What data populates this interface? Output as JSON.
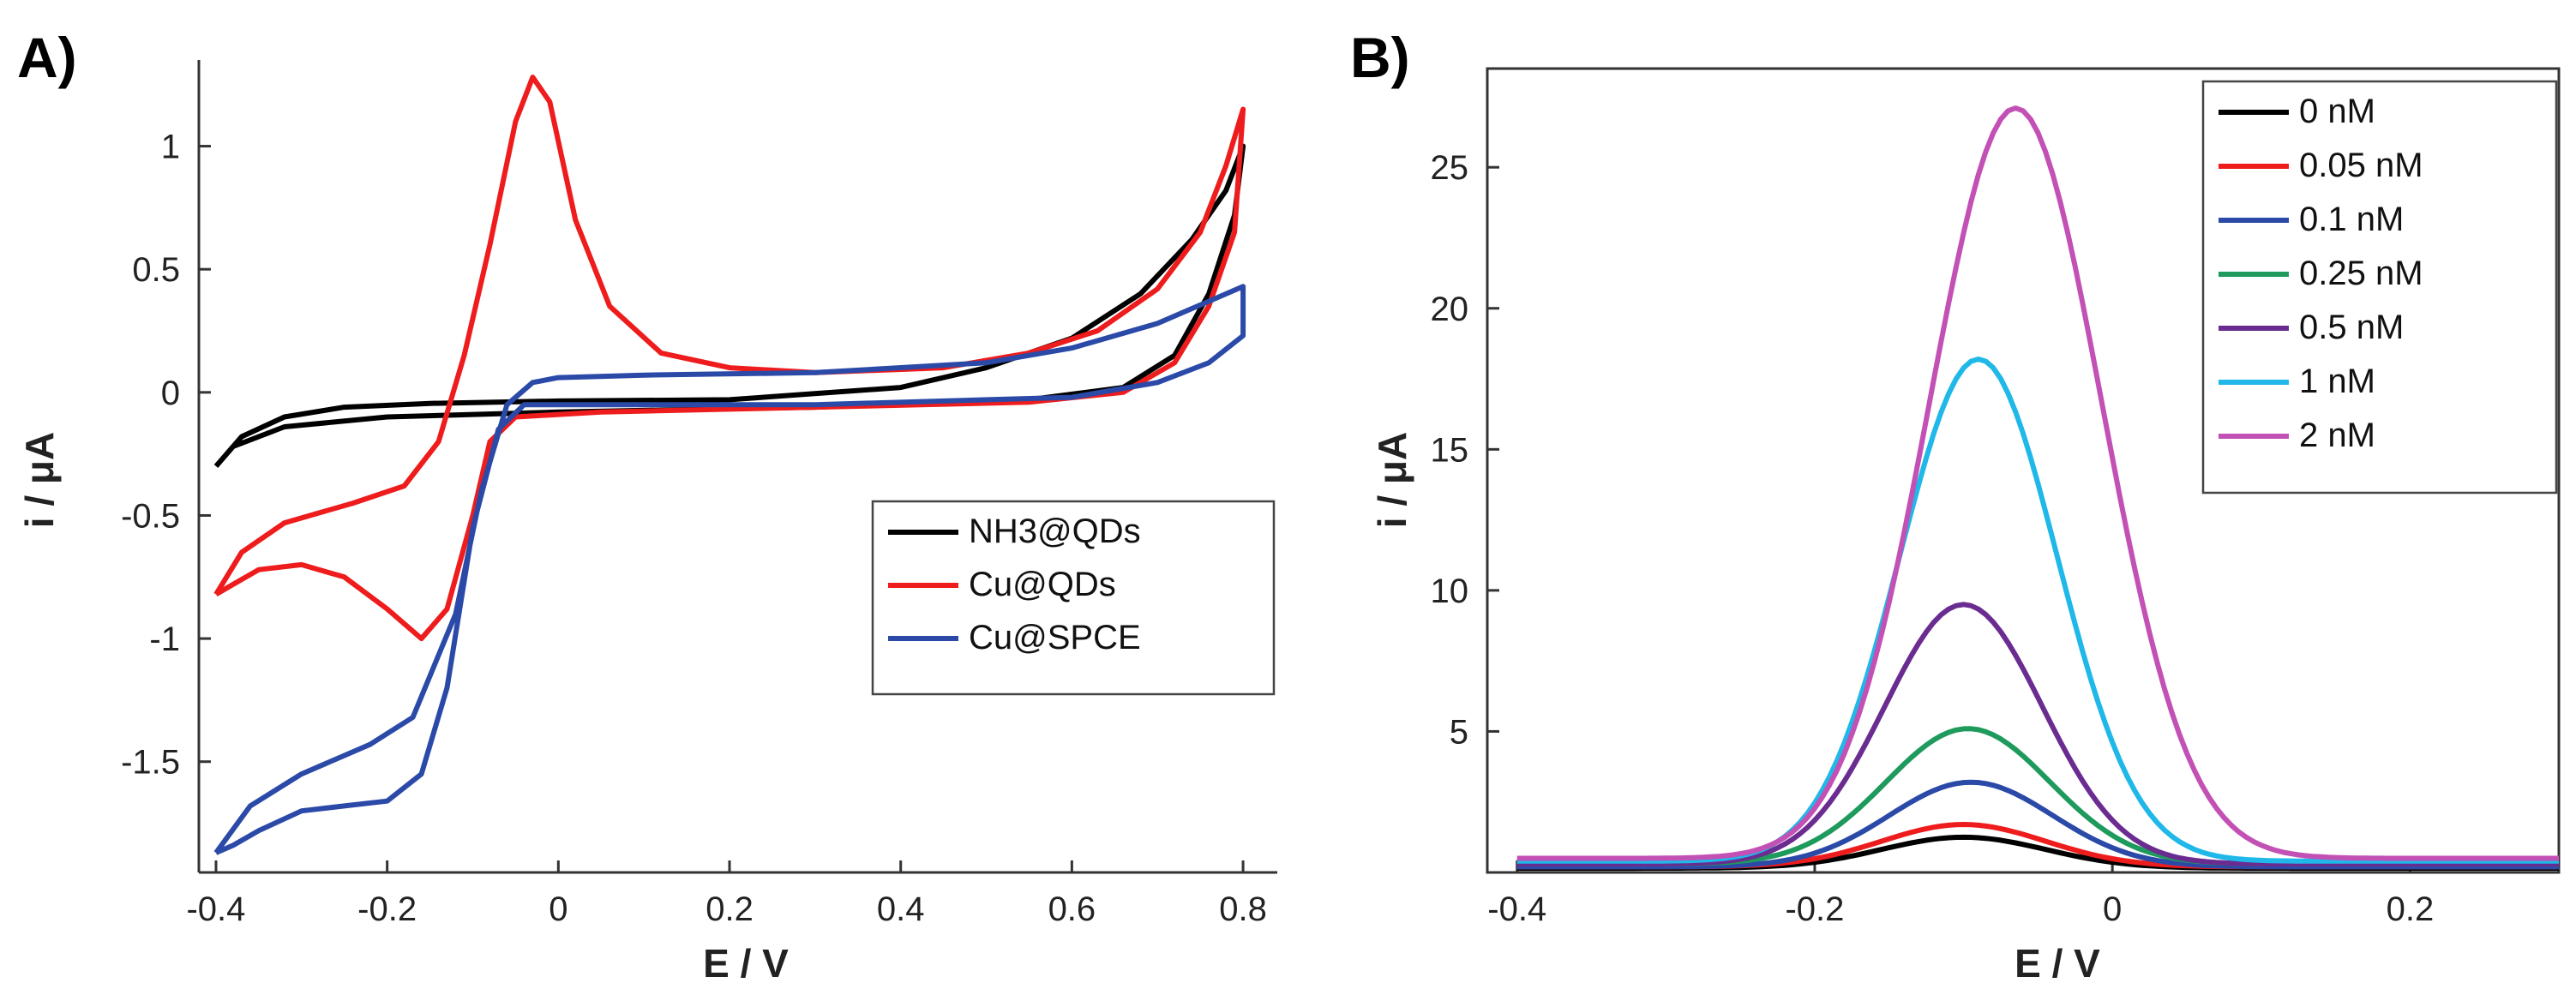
{
  "chart_data": [
    {
      "panel": "A)",
      "type": "line",
      "title": "",
      "xlabel": "E / V",
      "ylabel": "i / μA",
      "xlim": [
        -0.42,
        0.84
      ],
      "ylim": [
        -1.95,
        1.35
      ],
      "xticks": [
        -0.4,
        -0.2,
        0,
        0.2,
        0.4,
        0.6,
        0.8
      ],
      "xtick_labels": [
        "-0.4",
        "-0.2",
        "0",
        "0.2",
        "0.4",
        "0.6",
        "0.8"
      ],
      "yticks": [
        -1.5,
        -1,
        -0.5,
        0,
        0.5,
        1
      ],
      "ytick_labels": [
        "-1.5",
        "-1",
        "-0.5",
        "0",
        "0.5",
        "1"
      ],
      "legend_position": "center-right",
      "series": [
        {
          "name": "NH3@QDs",
          "color": "#000000",
          "points": [
            [
              -0.4,
              -0.3
            ],
            [
              -0.37,
              -0.18
            ],
            [
              -0.32,
              -0.1
            ],
            [
              -0.25,
              -0.06
            ],
            [
              -0.15,
              -0.045
            ],
            [
              0,
              -0.035
            ],
            [
              0.2,
              -0.03
            ],
            [
              0.4,
              0.02
            ],
            [
              0.5,
              0.1
            ],
            [
              0.6,
              0.22
            ],
            [
              0.68,
              0.4
            ],
            [
              0.74,
              0.62
            ],
            [
              0.78,
              0.82
            ],
            [
              0.8,
              1.0
            ],
            [
              0.79,
              0.72
            ],
            [
              0.76,
              0.4
            ],
            [
              0.72,
              0.15
            ],
            [
              0.66,
              0.02
            ],
            [
              0.55,
              -0.03
            ],
            [
              0.3,
              -0.06
            ],
            [
              0,
              -0.08
            ],
            [
              -0.2,
              -0.1
            ],
            [
              -0.32,
              -0.14
            ],
            [
              -0.38,
              -0.22
            ],
            [
              -0.4,
              -0.3
            ]
          ]
        },
        {
          "name": "Cu@QDs",
          "color": "#ee1c1c",
          "points": [
            [
              -0.4,
              -0.82
            ],
            [
              -0.37,
              -0.65
            ],
            [
              -0.32,
              -0.53
            ],
            [
              -0.24,
              -0.45
            ],
            [
              -0.18,
              -0.38
            ],
            [
              -0.14,
              -0.2
            ],
            [
              -0.11,
              0.15
            ],
            [
              -0.08,
              0.6
            ],
            [
              -0.05,
              1.1
            ],
            [
              -0.03,
              1.28
            ],
            [
              -0.01,
              1.18
            ],
            [
              0.02,
              0.7
            ],
            [
              0.06,
              0.35
            ],
            [
              0.12,
              0.16
            ],
            [
              0.2,
              0.1
            ],
            [
              0.3,
              0.08
            ],
            [
              0.45,
              0.1
            ],
            [
              0.55,
              0.16
            ],
            [
              0.63,
              0.25
            ],
            [
              0.7,
              0.42
            ],
            [
              0.75,
              0.65
            ],
            [
              0.78,
              0.92
            ],
            [
              0.8,
              1.15
            ],
            [
              0.79,
              0.65
            ],
            [
              0.76,
              0.35
            ],
            [
              0.72,
              0.12
            ],
            [
              0.66,
              0.0
            ],
            [
              0.55,
              -0.04
            ],
            [
              0.3,
              -0.06
            ],
            [
              0.05,
              -0.08
            ],
            [
              -0.05,
              -0.1
            ],
            [
              -0.08,
              -0.2
            ],
            [
              -0.1,
              -0.5
            ],
            [
              -0.13,
              -0.88
            ],
            [
              -0.16,
              -1.0
            ],
            [
              -0.2,
              -0.88
            ],
            [
              -0.25,
              -0.75
            ],
            [
              -0.3,
              -0.7
            ],
            [
              -0.35,
              -0.72
            ],
            [
              -0.38,
              -0.78
            ],
            [
              -0.4,
              -0.82
            ]
          ]
        },
        {
          "name": "Cu@SPCE",
          "color": "#2b4aa8",
          "points": [
            [
              -0.4,
              -1.87
            ],
            [
              -0.36,
              -1.68
            ],
            [
              -0.3,
              -1.55
            ],
            [
              -0.22,
              -1.43
            ],
            [
              -0.17,
              -1.32
            ],
            [
              -0.12,
              -0.9
            ],
            [
              -0.09,
              -0.4
            ],
            [
              -0.06,
              -0.05
            ],
            [
              -0.03,
              0.04
            ],
            [
              0,
              0.06
            ],
            [
              0.1,
              0.07
            ],
            [
              0.3,
              0.08
            ],
            [
              0.5,
              0.12
            ],
            [
              0.6,
              0.18
            ],
            [
              0.7,
              0.28
            ],
            [
              0.8,
              0.43
            ],
            [
              0.8,
              0.23
            ],
            [
              0.76,
              0.12
            ],
            [
              0.7,
              0.04
            ],
            [
              0.6,
              -0.02
            ],
            [
              0.3,
              -0.05
            ],
            [
              0,
              -0.05
            ],
            [
              -0.04,
              -0.05
            ],
            [
              -0.07,
              -0.15
            ],
            [
              -0.1,
              -0.55
            ],
            [
              -0.13,
              -1.2
            ],
            [
              -0.16,
              -1.55
            ],
            [
              -0.2,
              -1.66
            ],
            [
              -0.25,
              -1.68
            ],
            [
              -0.3,
              -1.7
            ],
            [
              -0.35,
              -1.78
            ],
            [
              -0.38,
              -1.84
            ],
            [
              -0.4,
              -1.87
            ]
          ]
        }
      ]
    },
    {
      "panel": "B)",
      "type": "line",
      "title": "",
      "xlabel": "E / V",
      "ylabel": "i / μA",
      "xlim": [
        -0.42,
        0.3
      ],
      "ylim": [
        0,
        28.5
      ],
      "xticks": [
        -0.4,
        -0.2,
        0,
        0.2
      ],
      "xtick_labels": [
        "-0.4",
        "-0.2",
        "0",
        "0.2"
      ],
      "yticks": [
        5,
        10,
        15,
        20,
        25
      ],
      "ytick_labels": [
        "5",
        "10",
        "15",
        "20",
        "25"
      ],
      "legend_position": "top-right",
      "series": [
        {
          "name": "0 nM",
          "color": "#000000",
          "baseline": 0.15,
          "peak": 1.1,
          "center": -0.1,
          "width": 0.055
        },
        {
          "name": "0.05 nM",
          "color": "#ee1c1c",
          "baseline": 0.2,
          "peak": 1.5,
          "center": -0.1,
          "width": 0.055
        },
        {
          "name": "0.1 nM",
          "color": "#2b4aa8",
          "baseline": 0.2,
          "peak": 3.0,
          "center": -0.095,
          "width": 0.055
        },
        {
          "name": "0.25 nM",
          "color": "#1e9a5c",
          "baseline": 0.3,
          "peak": 4.8,
          "center": -0.097,
          "width": 0.055
        },
        {
          "name": "0.5 nM",
          "color": "#6a2c91",
          "baseline": 0.3,
          "peak": 9.2,
          "center": -0.1,
          "width": 0.053
        },
        {
          "name": "1 nM",
          "color": "#1fb8e8",
          "baseline": 0.4,
          "peak": 17.8,
          "center": -0.09,
          "width": 0.053
        },
        {
          "name": "2 nM",
          "color": "#c350b5",
          "baseline": 0.5,
          "peak": 26.6,
          "center": -0.065,
          "width": 0.058
        }
      ]
    }
  ]
}
